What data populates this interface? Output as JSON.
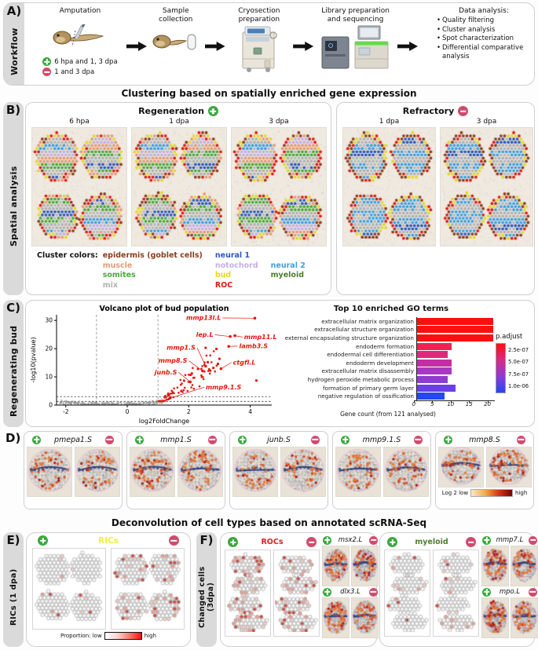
{
  "titles": {
    "clustering": "Clustering based on spatially enriched gene expression",
    "deconvolution": "Deconvolution of cell types based on annotated scRNA-Seq"
  },
  "A": {
    "label": "A)",
    "side_label": "Workflow",
    "steps": [
      {
        "title": "Amputation",
        "icon": "tadpole-scalpel-icon"
      },
      {
        "title": "Sample collection",
        "icon": "tadpole-tube-icon"
      },
      {
        "title": "Cryosection preparation",
        "icon": "cryostat-icon"
      },
      {
        "title": "Library preparation and sequencing",
        "icon": "sequencer-icon"
      },
      {
        "title": "Data analysis:",
        "bullets": [
          "Quality filtering",
          "Cluster analysis",
          "Spot characterization",
          "Differential comparative analysis"
        ]
      }
    ],
    "legend": [
      {
        "icon": "plus-icon",
        "text": "6 hpa and 1, 3 dpa"
      },
      {
        "icon": "minus-icon",
        "text": "1 and 3 dpa"
      }
    ]
  },
  "B": {
    "label": "B)",
    "side_label": "Spatial analysis",
    "regeneration": {
      "title": "Regeneration",
      "columns": [
        "6 hpa",
        "1 dpa",
        "3 dpa"
      ]
    },
    "refractory": {
      "title": "Refractory",
      "columns": [
        "1 dpa",
        "3 dpa"
      ]
    },
    "cluster_legend": {
      "title": "Cluster colors:",
      "items": [
        {
          "key": "epidermis",
          "label": "epidermis (goblet cells)",
          "color": "#8a3c1c"
        },
        {
          "key": "muscle",
          "label": "muscle",
          "color": "#e59a76"
        },
        {
          "key": "somites",
          "label": "somites",
          "color": "#4aa93c"
        },
        {
          "key": "mix",
          "label": "mix",
          "color": "#b0b0b0"
        },
        {
          "key": "neural1",
          "label": "neural 1",
          "color": "#2b59b8"
        },
        {
          "key": "notochord",
          "label": "notochord",
          "color": "#c4afe3"
        },
        {
          "key": "bud",
          "label": "bud",
          "color": "#e3d926"
        },
        {
          "key": "roc",
          "label": "ROC",
          "color": "#e01812"
        },
        {
          "key": "neural2",
          "label": "neural 2",
          "color": "#3f9fdf"
        },
        {
          "key": "myeloid",
          "label": "myeloid",
          "color": "#4c7d2a"
        }
      ]
    }
  },
  "C": {
    "label": "C)",
    "side_label": "Regenerating bud"
  },
  "D": {
    "label": "D)",
    "genes": [
      "pmepa1.S",
      "mmp1.S",
      "junb.S",
      "mmp9.1.S",
      "mmp8.S"
    ],
    "scale": {
      "left": "Log 2 low",
      "right": "high"
    }
  },
  "E": {
    "label": "E)",
    "side_label": "RICs (1 dpa)",
    "title": "RICs",
    "title_color": "#f2ef3c",
    "scale": {
      "left": "Proportion: low",
      "right": "high"
    }
  },
  "F": {
    "label": "F)",
    "side_label": "Changed cells (3dpa)",
    "groups": [
      {
        "title": "ROCs",
        "color": "#d42420",
        "genes": [
          "msx2.L",
          "dlx3.L"
        ]
      },
      {
        "title": "myeloid",
        "color": "#4c7d2a",
        "genes": [
          "mmp7.L",
          "mpo.L"
        ]
      }
    ]
  },
  "chart_data": [
    {
      "type": "scatter",
      "title": "Volcano plot of bud population",
      "xlabel": "log2FoldChange",
      "ylabel": "-log10(pvalue)",
      "xlim": [
        -2.3,
        4.7
      ],
      "ylim": [
        0,
        32
      ],
      "xticks": [
        -2,
        0,
        2,
        4
      ],
      "yticks": [
        0,
        10,
        20,
        30
      ],
      "vlines": [
        -1,
        1
      ],
      "hlines": [
        1.3,
        3
      ],
      "point_color": "#e8140f",
      "ns_color": "#999999",
      "genes": [
        {
          "name": "mmp13l.L",
          "x": 4.15,
          "y": 30.8,
          "lx": 3.05,
          "ly": 30.2,
          "anchor": "end"
        },
        {
          "name": "lep.L",
          "x": 3.35,
          "y": 24.3,
          "lx": 2.8,
          "ly": 24.2,
          "anchor": "end"
        },
        {
          "name": "mmp11.L",
          "x": 3.5,
          "y": 24.6,
          "lx": 3.8,
          "ly": 23.4,
          "anchor": "start"
        },
        {
          "name": "lamb3.S",
          "x": 3.3,
          "y": 20.8,
          "lx": 3.64,
          "ly": 20.2,
          "anchor": "start"
        },
        {
          "name": "mmp1.S",
          "x": 2.55,
          "y": 13.8,
          "lx": 2.22,
          "ly": 19.6,
          "anchor": "end"
        },
        {
          "name": "mmp8.S",
          "x": 2.45,
          "y": 12.1,
          "lx": 1.95,
          "ly": 15.0,
          "anchor": "end"
        },
        {
          "name": "junb.S",
          "x": 2.05,
          "y": 8.2,
          "lx": 1.62,
          "ly": 10.9,
          "anchor": "end"
        },
        {
          "name": "ctgfl.L",
          "x": 3.05,
          "y": 12.9,
          "lx": 3.44,
          "ly": 14.4,
          "anchor": "start"
        },
        {
          "name": "mmp9.1.S",
          "x": 1.38,
          "y": 2.4,
          "lx": 2.55,
          "ly": 5.6,
          "anchor": "start"
        }
      ],
      "extra_points": [
        [
          4.2,
          8.7
        ],
        [
          2.9,
          19.9
        ],
        [
          2.55,
          20.3
        ],
        [
          3.0,
          16.4
        ],
        [
          2.8,
          13.2
        ],
        [
          2.62,
          15.2
        ],
        [
          2.7,
          12.2
        ],
        [
          2.1,
          11.2
        ],
        [
          2.3,
          12.8
        ],
        [
          2.95,
          14.6
        ]
      ]
    },
    {
      "type": "bar",
      "orientation": "horizontal",
      "title": "Top 10 enriched GO terms",
      "xlabel": "Gene count (from 121 analysed)",
      "xticks": [
        0,
        5,
        10,
        15,
        20
      ],
      "xlim": [
        0,
        22
      ],
      "categories": [
        "extracellular matrix organization",
        "extracellular structure organization",
        "external encapsulating structure organization",
        "endoderm formation",
        "endodermal cell differentiation",
        "endoderm development",
        "extracellular matrix disassembly",
        "hydrogen peroxide metabolic process",
        "formation of primary germ layer",
        "negative regulation of ossification"
      ],
      "values": [
        21,
        21,
        21,
        9.5,
        8.5,
        9.5,
        9.5,
        8.5,
        10.5,
        7.5
      ],
      "bar_colors": [
        "#fb1010",
        "#fb1010",
        "#fb1010",
        "#f32052",
        "#dd2a7a",
        "#c130a0",
        "#a838c2",
        "#8f3bd2",
        "#6a3fe6",
        "#2347f2"
      ],
      "legend": {
        "title": "p.adjust",
        "ticks": [
          "2.5e-07",
          "5.0e-07",
          "7.5e-07",
          "1.0e-06"
        ],
        "gradient": [
          "#fb1010",
          "#d62a86",
          "#8f3bd2",
          "#2347f2"
        ]
      }
    }
  ]
}
